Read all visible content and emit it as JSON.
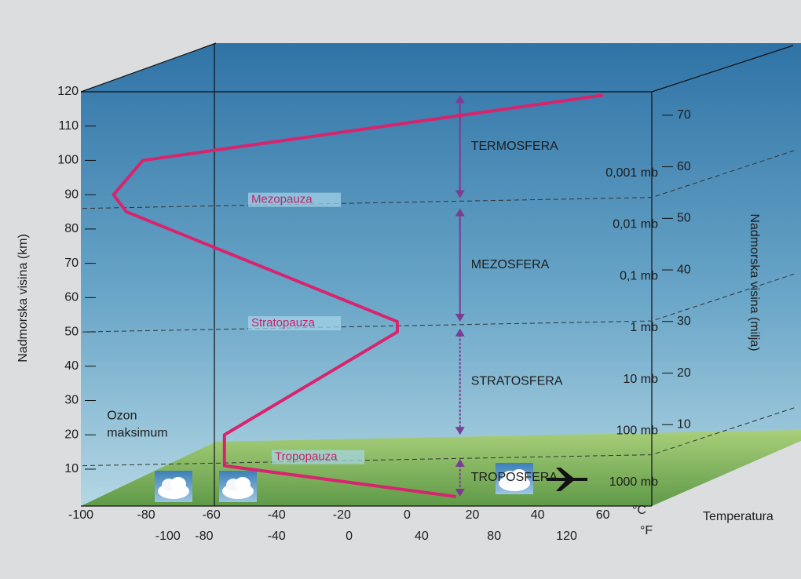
{
  "chart_data": {
    "type": "line",
    "ylabel": "Nadmorska visina (km)",
    "y2label": "Nadmorska visina (milja)",
    "xlabel": "Temperatura",
    "xunit": "°C",
    "x2unit": "°F",
    "xlim": [
      -100,
      75
    ],
    "xticks": [
      -100,
      -80,
      -60,
      -40,
      -20,
      0,
      20,
      40,
      60
    ],
    "x2lim": [
      -148,
      167
    ],
    "x2ticks": [
      -100,
      -80,
      -40,
      0,
      40,
      80,
      120
    ],
    "ylim": [
      0,
      120
    ],
    "yticks": [
      10,
      20,
      30,
      40,
      50,
      60,
      70,
      80,
      90,
      100,
      110,
      120
    ],
    "y2lim": [
      0,
      75
    ],
    "y2ticks": [
      10,
      20,
      30,
      40,
      50,
      60,
      70
    ],
    "series": [
      {
        "color": "#d8246e",
        "x": [
          15,
          -56,
          -56,
          -3,
          -3,
          -86,
          -90,
          -81,
          60
        ],
        "values": [
          2,
          11,
          20,
          50,
          53,
          85,
          90,
          100,
          119
        ]
      }
    ],
    "pressure_levels": [
      {
        "label": "1000 mb",
        "value": 0
      },
      {
        "label": "100 mb",
        "value": 10
      },
      {
        "label": "10 mb",
        "value": 20
      },
      {
        "label": "1 mb",
        "value": 30
      },
      {
        "label": "0,1 mb",
        "value": 40
      },
      {
        "label": "0,01 mb",
        "value": 50
      },
      {
        "label": "0,001 mb",
        "value": 60
      }
    ],
    "pauses": [
      {
        "label": "Tropopauza",
        "value": 11
      },
      {
        "label": "Stratopauza",
        "value": 50
      },
      {
        "label": "Mezopauza",
        "value": 86
      }
    ],
    "layers": [
      {
        "name": "TROPOSFERA",
        "from": 2,
        "to": 13
      },
      {
        "name": "STRATOSFERA",
        "from": 20,
        "to": 51
      },
      {
        "name": "MEZOSFERA",
        "from": 53,
        "to": 86
      },
      {
        "name": "TERMOSFERA",
        "from": 89,
        "to": 119
      }
    ],
    "annotation": {
      "text": [
        "Ozon",
        "maksimum"
      ],
      "x": -92,
      "y": 25
    }
  }
}
